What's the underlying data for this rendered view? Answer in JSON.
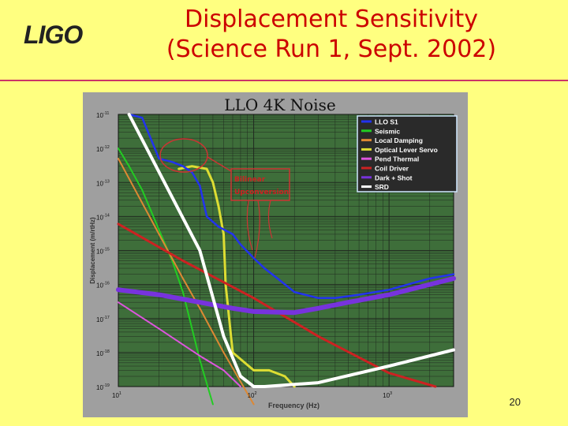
{
  "slide": {
    "logo": "LIGO",
    "title_line1": "Displacement Sensitivity",
    "title_line2": "(Science Run 1, Sept. 2002)",
    "page_number": "20"
  },
  "colors": {
    "background": "#ffff80",
    "title": "#cc0000",
    "plot_bg": "#3e6e3a",
    "grid": "#1a1a1a"
  },
  "chart_data": {
    "type": "line",
    "title": "LLO 4K Noise",
    "xlabel": "Frequency (Hz)",
    "ylabel": "Displacement (m/rtHz)",
    "xscale": "log",
    "yscale": "log",
    "xlim": [
      10,
      3000
    ],
    "ylim": [
      1e-19,
      1e-11
    ],
    "x_ticks": [
      {
        "value": 10,
        "base": "10",
        "exp": "1"
      },
      {
        "value": 100,
        "base": "10",
        "exp": "2"
      },
      {
        "value": 1000,
        "base": "10",
        "exp": "3"
      }
    ],
    "y_ticks": [
      {
        "value": 1e-11,
        "base": "10",
        "exp": "-11"
      },
      {
        "value": 1e-12,
        "base": "10",
        "exp": "-12"
      },
      {
        "value": 1e-13,
        "base": "10",
        "exp": "-13"
      },
      {
        "value": 1e-14,
        "base": "10",
        "exp": "-14"
      },
      {
        "value": 1e-15,
        "base": "10",
        "exp": "-15"
      },
      {
        "value": 1e-16,
        "base": "10",
        "exp": "-16"
      },
      {
        "value": 1e-17,
        "base": "10",
        "exp": "-17"
      },
      {
        "value": 1e-18,
        "base": "10",
        "exp": "-18"
      },
      {
        "value": 1e-19,
        "base": "10",
        "exp": "-19"
      }
    ],
    "grid": true,
    "legend_position": "top-right",
    "series": [
      {
        "name": "LLO S1",
        "color": "#2233ee",
        "x": [
          12,
          15,
          20,
          25,
          30,
          35,
          40,
          45,
          55,
          70,
          80,
          100,
          120,
          150,
          200,
          300,
          400,
          600,
          1000,
          1500,
          2000,
          3000
        ],
        "y": [
          1e-11,
          8e-12,
          5e-13,
          4e-13,
          3e-13,
          2e-13,
          8e-14,
          1e-14,
          5e-15,
          3e-15,
          1.5e-15,
          6e-16,
          3e-16,
          1.5e-16,
          6e-17,
          4e-17,
          4e-17,
          5e-17,
          7e-17,
          1.1e-16,
          1.5e-16,
          2e-16
        ]
      },
      {
        "name": "Seismic",
        "color": "#22cc22",
        "x": [
          10,
          12,
          15,
          20,
          25,
          30,
          40,
          50
        ],
        "y": [
          1e-12,
          3e-13,
          6e-14,
          4e-15,
          5e-16,
          6e-17,
          6e-19,
          3e-20
        ]
      },
      {
        "name": "Local Damping",
        "color": "#dd8833",
        "x": [
          10,
          20,
          30,
          40,
          60,
          100
        ],
        "y": [
          5e-13,
          3e-15,
          1.5e-16,
          2e-17,
          1e-18,
          3e-20
        ]
      },
      {
        "name": "Optical Lever Servo",
        "color": "#dddd33",
        "x": [
          28,
          35,
          45,
          50,
          55,
          60,
          62,
          70,
          100,
          130,
          170,
          200
        ],
        "y": [
          2.5e-13,
          3e-13,
          2.5e-13,
          1e-13,
          2e-14,
          3e-15,
          1e-16,
          1e-18,
          3e-19,
          3e-19,
          2e-19,
          1e-19
        ]
      },
      {
        "name": "Pend Thermal",
        "color": "#dd55dd",
        "x": [
          10,
          20,
          40,
          60,
          80
        ],
        "y": [
          3e-17,
          5e-18,
          8e-19,
          3e-19,
          1e-19
        ]
      },
      {
        "name": "Coil Driver",
        "color": "#cc2222",
        "x": [
          10,
          30,
          100,
          300,
          1000,
          2200
        ],
        "y": [
          6e-15,
          5e-16,
          4e-17,
          3e-18,
          2.5e-19,
          1e-19
        ]
      },
      {
        "name": "Dark + Shot",
        "color": "#7733dd",
        "x": [
          10,
          20,
          40,
          70,
          100,
          200,
          300,
          500,
          1000,
          2000,
          3000
        ],
        "y": [
          7e-17,
          5e-17,
          3e-17,
          2e-17,
          1.6e-17,
          1.5e-17,
          2e-17,
          3e-17,
          5e-17,
          1e-16,
          1.5e-16
        ]
      },
      {
        "name": "SRD",
        "color": "#ffffff",
        "x": [
          12,
          40,
          60,
          80,
          100,
          120,
          300,
          1000,
          3000
        ],
        "y": [
          1e-11,
          1e-15,
          3e-18,
          2e-19,
          1e-19,
          1e-19,
          1.3e-19,
          4e-19,
          1.2e-18
        ]
      }
    ],
    "annotation": {
      "line1": "Bilinear",
      "line2": "Upconversion"
    }
  }
}
